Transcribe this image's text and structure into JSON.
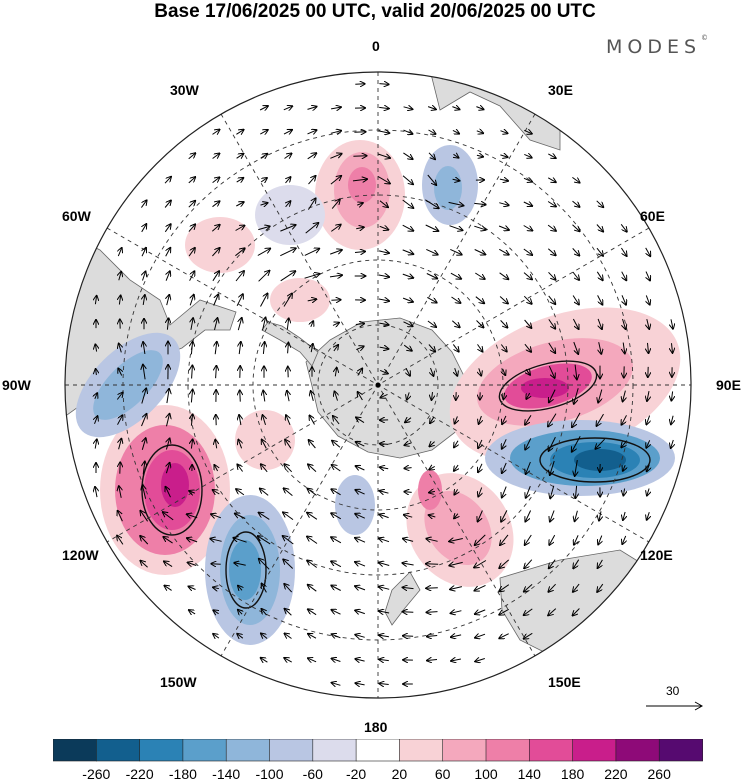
{
  "title": "Base 17/06/2025 00 UTC, valid 20/06/2025 00 UTC",
  "brand": "MODES",
  "brand_mark": "©",
  "longitude_labels": {
    "top": "0",
    "top_right": "30E",
    "right_upper": "60E",
    "right": "90E",
    "right_lower": "120E",
    "bottom_right": "150E",
    "bottom": "180",
    "bottom_left": "150W",
    "left_lower": "120W",
    "left": "90W",
    "left_upper": "60W",
    "top_left": "30W"
  },
  "reference_vector": {
    "value": "30"
  },
  "colorbar": {
    "ticks": [
      "-260",
      "-220",
      "-180",
      "-140",
      "-100",
      "-60",
      "-20",
      "20",
      "60",
      "100",
      "140",
      "180",
      "220",
      "260"
    ],
    "colors": [
      "#0b3a5a",
      "#125f8e",
      "#2b82b5",
      "#5b9fcb",
      "#8fb6da",
      "#b9c6e3",
      "#dcdcec",
      "#ffffff",
      "#f8d2d6",
      "#f4a8bd",
      "#ee7fa8",
      "#e24c98",
      "#c91e8b",
      "#8e0a78",
      "#560a70"
    ]
  },
  "colors": {
    "land": "#dcdcdc",
    "coast": "#555555",
    "grid": "#333333",
    "contour": "#111111"
  }
}
